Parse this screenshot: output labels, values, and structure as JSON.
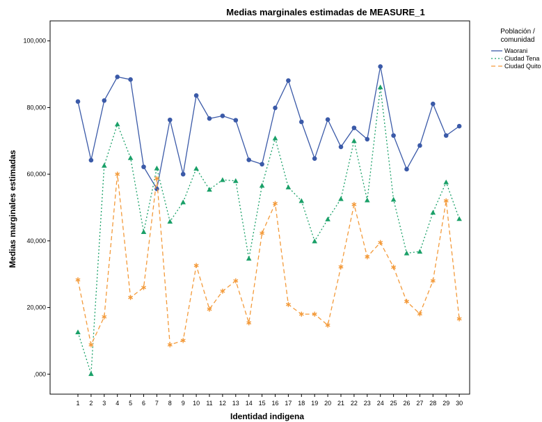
{
  "chart_data": {
    "type": "line",
    "title": "Medias marginales estimadas de MEASURE_1",
    "xlabel": "Identidad indigena",
    "ylabel": "Medias marginales estimadas",
    "categories": [
      "1",
      "2",
      "3",
      "4",
      "5",
      "6",
      "7",
      "8",
      "9",
      "10",
      "11",
      "12",
      "13",
      "14",
      "15",
      "16",
      "17",
      "18",
      "19",
      "20",
      "21",
      "22",
      "23",
      "24",
      "25",
      "26",
      "27",
      "28",
      "29",
      "30"
    ],
    "ylim": [
      -6,
      106
    ],
    "yticks": [
      0,
      20,
      40,
      60,
      80,
      100
    ],
    "ytick_labels": [
      ",000",
      "20,000",
      "40,000",
      "60,000",
      "80,000",
      "100,000"
    ],
    "grid": false,
    "legend": {
      "title_line1": "Población /",
      "title_line2": "comunidad",
      "position": "top-right"
    },
    "series": [
      {
        "name": "Waorani",
        "color": "#3b5aa8",
        "style": "solid",
        "marker": "circle",
        "values": [
          81.8,
          64.2,
          82.1,
          89.2,
          88.4,
          62.2,
          55.6,
          76.3,
          60.0,
          83.6,
          76.7,
          77.5,
          76.2,
          64.3,
          63.0,
          79.9,
          88.1,
          75.7,
          64.7,
          76.4,
          68.2,
          73.9,
          70.5,
          92.3,
          71.6,
          61.5,
          68.6,
          81.1,
          71.6,
          74.4
        ]
      },
      {
        "name": "Ciudad Tena",
        "color": "#1aa068",
        "style": "dotted",
        "marker": "triangle",
        "values": [
          12.6,
          0.1,
          62.6,
          75.0,
          64.9,
          42.7,
          61.8,
          45.8,
          51.6,
          61.7,
          55.4,
          58.3,
          58.0,
          34.7,
          56.6,
          70.8,
          56.1,
          52.0,
          39.9,
          46.5,
          52.6,
          70.0,
          52.2,
          86.1,
          52.4,
          36.3,
          36.8,
          48.5,
          57.6,
          46.6
        ]
      },
      {
        "name": "Ciudad Quito",
        "color": "#f39a3a",
        "style": "dashed",
        "marker": "asterisk",
        "values": [
          28.3,
          8.8,
          17.2,
          60.0,
          23.0,
          26.0,
          58.7,
          8.8,
          10.1,
          32.6,
          19.5,
          24.9,
          28.0,
          15.4,
          42.3,
          51.2,
          20.9,
          18.0,
          18.0,
          14.7,
          32.2,
          50.9,
          35.2,
          39.5,
          32.1,
          21.8,
          18.1,
          28.0,
          52.0,
          16.6
        ]
      }
    ]
  }
}
